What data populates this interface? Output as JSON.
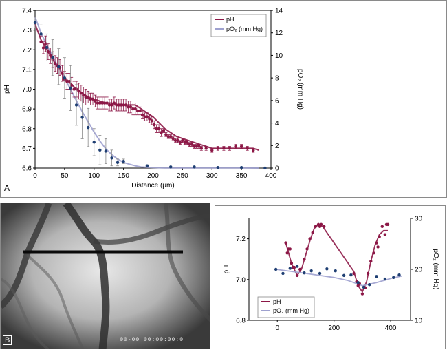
{
  "panels": {
    "a_label": "A",
    "b_label": "B",
    "b_timestamp": "00-00 00:00:00:0"
  },
  "colors": {
    "ph": "#8c1746",
    "po2": "#9ea1cf",
    "po2_pt": "#1f3f73",
    "err": "#8a8a8a"
  },
  "chart_data": [
    {
      "id": "A",
      "type": "line",
      "xlabel": "Distance (μm)",
      "ylabel": "pH",
      "y2label": "pO₂ (mm Hg)",
      "xlim": [
        0,
        400
      ],
      "ylim": [
        6.6,
        7.4
      ],
      "y2lim": [
        0,
        14
      ],
      "xticks": [
        0,
        50,
        100,
        150,
        200,
        250,
        300,
        350,
        400
      ],
      "yticks": [
        6.6,
        6.7,
        6.8,
        6.9,
        7.0,
        7.1,
        7.2,
        7.3,
        7.4
      ],
      "y2ticks": [
        0,
        2,
        4,
        6,
        8,
        10,
        12,
        14
      ],
      "legend": [
        {
          "name": "pH",
          "color": "#8c1746"
        },
        {
          "name": "pO₂ (mm Hg)",
          "color": "#9ea1cf"
        }
      ],
      "series": [
        {
          "name": "pH",
          "axis": "left",
          "kind": "points_err",
          "x": [
            10,
            14,
            18,
            22,
            26,
            30,
            34,
            38,
            42,
            46,
            50,
            54,
            58,
            62,
            66,
            70,
            74,
            78,
            82,
            86,
            90,
            94,
            98,
            102,
            106,
            110,
            114,
            118,
            122,
            126,
            130,
            134,
            138,
            142,
            146,
            150,
            154,
            158,
            162,
            166,
            170,
            174,
            178,
            182,
            186,
            190,
            194,
            198,
            202,
            206,
            210,
            214,
            218,
            222,
            226,
            230,
            234,
            238,
            242,
            246,
            250,
            254,
            258,
            262,
            266,
            270,
            274,
            278,
            282,
            290,
            300,
            310,
            320,
            330,
            340,
            350,
            360,
            370
          ],
          "y": [
            7.24,
            7.21,
            7.23,
            7.19,
            7.17,
            7.15,
            7.13,
            7.12,
            7.11,
            7.08,
            7.05,
            7.04,
            7.04,
            7.02,
            7.0,
            7.0,
            6.99,
            6.98,
            6.97,
            6.96,
            6.96,
            6.95,
            6.95,
            6.94,
            6.93,
            6.93,
            6.93,
            6.93,
            6.93,
            6.92,
            6.92,
            6.93,
            6.92,
            6.92,
            6.92,
            6.92,
            6.92,
            6.91,
            6.91,
            6.9,
            6.9,
            6.89,
            6.89,
            6.87,
            6.86,
            6.86,
            6.85,
            6.84,
            6.82,
            6.8,
            6.8,
            6.78,
            6.79,
            6.77,
            6.76,
            6.76,
            6.75,
            6.74,
            6.74,
            6.73,
            6.74,
            6.73,
            6.73,
            6.72,
            6.72,
            6.71,
            6.71,
            6.71,
            6.7,
            6.7,
            6.69,
            6.7,
            6.7,
            6.7,
            6.71,
            6.71,
            6.7,
            6.69
          ],
          "err": [
            0.03,
            0.03,
            0.04,
            0.04,
            0.04,
            0.04,
            0.04,
            0.04,
            0.04,
            0.04,
            0.04,
            0.04,
            0.04,
            0.04,
            0.04,
            0.04,
            0.04,
            0.04,
            0.04,
            0.04,
            0.03,
            0.03,
            0.03,
            0.03,
            0.03,
            0.03,
            0.03,
            0.03,
            0.03,
            0.03,
            0.03,
            0.03,
            0.03,
            0.03,
            0.03,
            0.03,
            0.03,
            0.03,
            0.03,
            0.03,
            0.03,
            0.02,
            0.02,
            0.02,
            0.02,
            0.02,
            0.02,
            0.02,
            0.02,
            0.02,
            0.02,
            0.02,
            0.01,
            0.01,
            0.01,
            0.01,
            0.01,
            0.01,
            0.01,
            0.01,
            0.01,
            0.01,
            0.01,
            0.01,
            0.01,
            0.01,
            0.01,
            0.01,
            0.01,
            0.01,
            0.01,
            0.01,
            0.01,
            0.01,
            0.01,
            0.01,
            0.01,
            0.01
          ]
        },
        {
          "name": "pH fit",
          "axis": "left",
          "kind": "line",
          "x": [
            0,
            10,
            20,
            30,
            40,
            50,
            60,
            70,
            80,
            90,
            100,
            110,
            120,
            130,
            140,
            150,
            160,
            170,
            180,
            190,
            200,
            210,
            220,
            230,
            240,
            250,
            260,
            270,
            280,
            290,
            300,
            310,
            320,
            330,
            340,
            350,
            360,
            370,
            380
          ],
          "y": [
            7.33,
            7.25,
            7.2,
            7.15,
            7.11,
            7.06,
            7.03,
            7.0,
            6.98,
            6.96,
            6.95,
            6.94,
            6.93,
            6.93,
            6.92,
            6.92,
            6.92,
            6.92,
            6.9,
            6.88,
            6.86,
            6.83,
            6.8,
            6.78,
            6.76,
            6.75,
            6.74,
            6.73,
            6.72,
            6.71,
            6.7,
            6.7,
            6.7,
            6.7,
            6.7,
            6.7,
            6.7,
            6.7,
            6.69
          ]
        },
        {
          "name": "pO₂ (mm Hg)",
          "axis": "right",
          "kind": "points_err",
          "x": [
            0,
            10,
            20,
            30,
            40,
            50,
            60,
            70,
            80,
            90,
            100,
            110,
            120,
            130,
            140,
            150,
            190,
            230,
            270,
            310,
            350,
            390
          ],
          "y": [
            12.9,
            11.9,
            10.7,
            9.8,
            9.0,
            8.0,
            7.1,
            5.6,
            4.5,
            3.6,
            2.3,
            1.6,
            1.5,
            0.9,
            0.5,
            0.6,
            0.2,
            0.1,
            0.1,
            0.05,
            0.05,
            0.0
          ],
          "err": [
            0.5,
            0.8,
            1.2,
            1.6,
            1.6,
            1.8,
            2.0,
            1.8,
            1.9,
            1.7,
            1.2,
            1.3,
            1.1,
            0.7,
            0.3,
            0.2,
            0.1,
            0.05,
            0.05,
            0.05,
            0.05,
            0.05
          ]
        },
        {
          "name": "pO₂ fit",
          "axis": "right",
          "kind": "line",
          "x": [
            0,
            10,
            20,
            30,
            40,
            50,
            60,
            70,
            80,
            90,
            100,
            110,
            120,
            130,
            140,
            150,
            160,
            170,
            180,
            200,
            220,
            260,
            300,
            350,
            380
          ],
          "y": [
            13.4,
            12.0,
            10.9,
            9.9,
            8.9,
            8.0,
            7.0,
            6.0,
            5.0,
            4.1,
            3.2,
            2.4,
            1.7,
            1.2,
            0.8,
            0.5,
            0.35,
            0.2,
            0.1,
            0.05,
            0.02,
            0.01,
            0.01,
            0.01,
            0.0
          ]
        }
      ]
    },
    {
      "id": "C",
      "type": "line",
      "xlabel": "",
      "ylabel": "pH",
      "y2label": "pO₂ (mm Hg)",
      "xlim": [
        -100,
        470
      ],
      "ylim": [
        6.8,
        7.3
      ],
      "y2lim": [
        10,
        30
      ],
      "xticks": [
        0,
        200,
        400
      ],
      "yticks": [
        6.8,
        7.0,
        7.2
      ],
      "y2ticks": [
        10,
        20,
        30
      ],
      "legend": [
        {
          "name": "pH",
          "color": "#8c1746"
        },
        {
          "name": "pO₂ (mm Hg)",
          "color": "#9ea1cf"
        }
      ],
      "series": [
        {
          "name": "pH",
          "axis": "left",
          "kind": "points",
          "x": [
            30,
            35,
            40,
            45,
            50,
            55,
            60,
            70,
            80,
            95,
            105,
            115,
            125,
            135,
            145,
            150,
            155,
            165,
            270,
            280,
            285,
            290,
            300,
            310,
            320,
            330,
            340,
            350,
            355,
            360,
            370,
            380,
            385,
            390
          ],
          "y": [
            7.18,
            7.13,
            7.15,
            7.15,
            7.08,
            7.06,
            7.06,
            7.02,
            7.05,
            7.1,
            7.15,
            7.2,
            7.23,
            7.26,
            7.27,
            7.26,
            7.27,
            7.26,
            7.03,
            6.99,
            6.97,
            6.98,
            6.93,
            6.96,
            7.03,
            7.09,
            7.13,
            7.18,
            7.16,
            7.21,
            7.26,
            7.22,
            7.27,
            7.27
          ]
        },
        {
          "name": "pH fit",
          "axis": "left",
          "kind": "line",
          "x": [
            30,
            50,
            70,
            85,
            100,
            115,
            130,
            145,
            160,
            270,
            285,
            300,
            315,
            330,
            345,
            360,
            375,
            390
          ],
          "y": [
            7.18,
            7.08,
            7.02,
            7.05,
            7.12,
            7.19,
            7.25,
            7.27,
            7.26,
            7.04,
            6.97,
            6.94,
            6.99,
            7.09,
            7.17,
            7.22,
            7.24,
            7.24
          ]
        },
        {
          "name": "pO₂ (mm Hg)",
          "axis": "right",
          "kind": "points",
          "x": [
            -5,
            20,
            45,
            70,
            95,
            120,
            150,
            175,
            205,
            235,
            260,
            285,
            305,
            325,
            350,
            380,
            410,
            430
          ],
          "y": [
            20.0,
            19.2,
            20.2,
            20.6,
            19.3,
            19.7,
            19.2,
            20.1,
            19.7,
            18.8,
            18.9,
            17.4,
            16.5,
            17.0,
            18.6,
            18.1,
            18.4,
            18.9
          ]
        },
        {
          "name": "pO₂ fit",
          "axis": "right",
          "kind": "line",
          "x": [
            -5,
            50,
            100,
            150,
            200,
            250,
            300,
            350,
            400,
            440
          ],
          "y": [
            20.0,
            19.6,
            19.2,
            18.8,
            18.4,
            17.8,
            16.8,
            17.4,
            18.2,
            18.7
          ]
        }
      ]
    }
  ]
}
